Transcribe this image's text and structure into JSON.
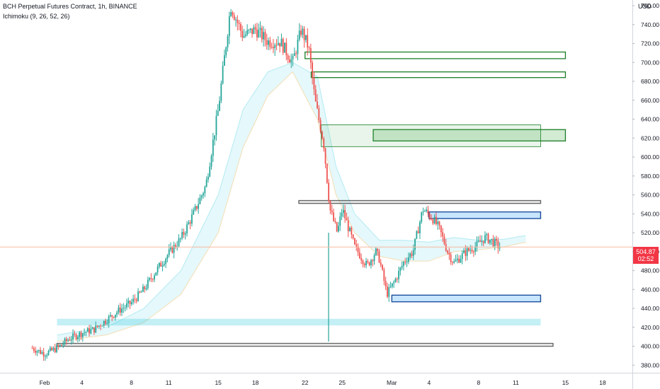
{
  "legend": {
    "title": "BCH Perpetual Futures Contract, 1h, BINANCE",
    "indicator": "Ichimoku (9, 26, 52, 26)"
  },
  "axis": {
    "currency": "USD"
  },
  "current": {
    "price": "504.87",
    "countdown": "02:52"
  },
  "chart_data": {
    "type": "candlestick",
    "title": "BCH Perpetual Futures Contract, 1h, BINANCE",
    "ylim": [
      372,
      766
    ],
    "y_ticks": [
      380,
      400,
      420,
      440,
      460,
      480,
      500,
      520,
      540,
      560,
      580,
      600,
      620,
      640,
      660,
      680,
      700,
      720,
      740,
      760
    ],
    "x_ticks": [
      {
        "label": "Feb",
        "day": 1
      },
      {
        "label": "4",
        "day": 4
      },
      {
        "label": "8",
        "day": 8
      },
      {
        "label": "11",
        "day": 11
      },
      {
        "label": "15",
        "day": 15
      },
      {
        "label": "18",
        "day": 18
      },
      {
        "label": "22",
        "day": 22
      },
      {
        "label": "25",
        "day": 25
      },
      {
        "label": "Mar",
        "day": 29
      },
      {
        "label": "4",
        "day": 32
      },
      {
        "label": "8",
        "day": 36
      },
      {
        "label": "11",
        "day": 39
      },
      {
        "label": "15",
        "day": 43
      },
      {
        "label": "18",
        "day": 46
      }
    ],
    "xlim": [
      -2.6,
      48.4
    ],
    "price_path": [
      [
        0,
        398
      ],
      [
        1,
        392
      ],
      [
        2,
        398
      ],
      [
        3,
        408
      ],
      [
        4,
        414
      ],
      [
        5,
        418
      ],
      [
        6,
        428
      ],
      [
        7,
        438
      ],
      [
        8,
        446
      ],
      [
        9,
        460
      ],
      [
        10,
        480
      ],
      [
        11,
        498
      ],
      [
        12,
        514
      ],
      [
        13,
        540
      ],
      [
        14,
        570
      ],
      [
        15,
        650
      ],
      [
        15.5,
        705
      ],
      [
        16,
        760
      ],
      [
        17,
        728
      ],
      [
        18,
        735
      ],
      [
        19,
        722
      ],
      [
        20,
        722
      ],
      [
        21,
        700
      ],
      [
        21.7,
        735
      ],
      [
        22.3,
        715
      ],
      [
        22.8,
        660
      ],
      [
        23.5,
        615
      ],
      [
        24,
        545
      ],
      [
        24.6,
        520
      ],
      [
        25,
        545
      ],
      [
        25.5,
        525
      ],
      [
        26,
        505
      ],
      [
        27,
        485
      ],
      [
        27.7,
        500
      ],
      [
        28,
        492
      ],
      [
        28.6,
        455
      ],
      [
        29.2,
        468
      ],
      [
        30,
        490
      ],
      [
        30.7,
        500
      ],
      [
        31.5,
        545
      ],
      [
        32.3,
        535
      ],
      [
        32.8,
        525
      ],
      [
        33.5,
        500
      ],
      [
        34,
        488
      ],
      [
        35,
        500
      ],
      [
        35.8,
        506
      ],
      [
        36.5,
        515
      ],
      [
        37,
        512
      ],
      [
        37.7,
        504.87
      ]
    ],
    "cloud": [
      [
        2,
        405,
        412
      ],
      [
        6,
        412,
        420
      ],
      [
        9,
        425,
        440
      ],
      [
        12,
        455,
        480
      ],
      [
        15,
        520,
        560
      ],
      [
        17,
        610,
        650
      ],
      [
        19,
        665,
        690
      ],
      [
        21,
        690,
        700
      ],
      [
        23,
        640,
        685
      ],
      [
        24.5,
        560,
        590
      ],
      [
        26,
        520,
        540
      ],
      [
        28,
        495,
        512
      ],
      [
        30,
        490,
        512
      ],
      [
        32,
        490,
        510
      ],
      [
        34,
        500,
        515
      ],
      [
        36,
        502,
        512
      ],
      [
        38,
        505,
        513
      ],
      [
        39.8,
        510,
        517
      ]
    ],
    "zones": [
      {
        "type": "resistance",
        "color": "green",
        "from": 22,
        "to": 43,
        "low": 704,
        "high": 711
      },
      {
        "type": "resistance",
        "color": "green",
        "from": 22.5,
        "to": 43,
        "low": 684,
        "high": 690
      },
      {
        "type": "resistance",
        "color": "green",
        "from": 27.5,
        "to": 43,
        "low": 617,
        "high": 629
      },
      {
        "type": "resistance",
        "color": "green",
        "from": 23.3,
        "to": 41,
        "low": 611,
        "high": 634
      },
      {
        "type": "level",
        "color": "gray",
        "from": 21.5,
        "to": 41,
        "low": 551,
        "high": 554
      },
      {
        "type": "supply",
        "color": "blue",
        "from": 32,
        "to": 41,
        "low": 535,
        "high": 542
      },
      {
        "type": "demand",
        "color": "blue",
        "from": 29,
        "to": 41,
        "low": 447,
        "high": 454
      },
      {
        "type": "support",
        "color": "teal",
        "from": 2,
        "to": 41,
        "low": 422,
        "high": 429
      },
      {
        "type": "level",
        "color": "gray",
        "from": 2,
        "to": 42,
        "low": 400,
        "high": 403
      }
    ],
    "vertical_wick": {
      "day": 23.9,
      "low": 405,
      "high": 520
    }
  },
  "colors": {
    "up": "#26a69a",
    "down": "#ef5350",
    "zone_green": "#1b7e27",
    "zone_green_fill": "rgba(76,175,80,0.25)",
    "zone_blue": "#1e4f9e",
    "zone_blue_fill": "rgba(33,150,243,0.25)",
    "zone_teal_fill": "rgba(38,198,218,0.28)",
    "zone_gray": "#555555",
    "cloud_fill": "rgba(224,247,250,0.85)",
    "cloud_line": "#b2ebf2",
    "price_tag": "#f23645",
    "price_line": "#f7b9a0"
  }
}
